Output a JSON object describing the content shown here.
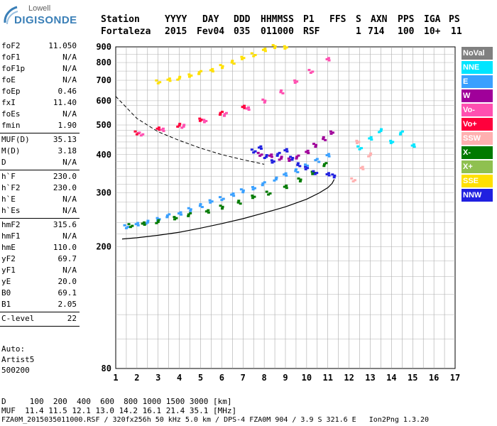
{
  "brand": {
    "line1": "Lowell",
    "line2": "DIGISONDE"
  },
  "header": {
    "labels": [
      "Station",
      "YYYY",
      "DAY",
      "DDD",
      "HHMMSS",
      "P1",
      "FFS",
      "S",
      "AXN",
      "PPS",
      "IGA",
      "PS"
    ],
    "values": [
      "Fortaleza",
      "2015",
      "Fev04",
      "035",
      "011000",
      "RSF",
      "",
      "1",
      "714",
      "100",
      "10+",
      "11"
    ]
  },
  "params_group1": [
    {
      "label": "foF2",
      "value": "11.050"
    },
    {
      "label": "foF1",
      "value": "N/A"
    },
    {
      "label": "foF1p",
      "value": "N/A"
    },
    {
      "label": "foE",
      "value": "N/A"
    },
    {
      "label": "foEp",
      "value": "0.46"
    },
    {
      "label": "fxI",
      "value": "11.40"
    },
    {
      "label": "foEs",
      "value": "N/A"
    },
    {
      "label": "fmin",
      "value": "1.90"
    }
  ],
  "params_group2": [
    {
      "label": "MUF(D)",
      "value": "35.13"
    },
    {
      "label": "M(D)",
      "value": "3.18"
    },
    {
      "label": "D",
      "value": "N/A"
    }
  ],
  "params_group3": [
    {
      "label": "h`F",
      "value": "230.0"
    },
    {
      "label": "h`F2",
      "value": "230.0"
    },
    {
      "label": "h`E",
      "value": "N/A"
    },
    {
      "label": "h`Es",
      "value": "N/A"
    }
  ],
  "params_group4": [
    {
      "label": "hmF2",
      "value": "315.6"
    },
    {
      "label": "hmF1",
      "value": "N/A"
    },
    {
      "label": "hmE",
      "value": "110.0"
    },
    {
      "label": "yF2",
      "value": "69.7"
    },
    {
      "label": "yF1",
      "value": "N/A"
    },
    {
      "label": "yE",
      "value": "20.0"
    },
    {
      "label": "B0",
      "value": "69.1"
    },
    {
      "label": "B1",
      "value": "2.05"
    }
  ],
  "params_group5": [
    {
      "label": "C-level",
      "value": "22"
    }
  ],
  "autoscaling": {
    "line1": "Auto:",
    "line2": "Artist5",
    "line3": "500200"
  },
  "legend": [
    {
      "label": "NoVal",
      "color": "#808080"
    },
    {
      "label": "NNE",
      "color": "#00e5ff"
    },
    {
      "label": "E",
      "color": "#3aa0ff"
    },
    {
      "label": "W",
      "color": "#a0009a"
    },
    {
      "label": "Vo-",
      "color": "#ff4fb0"
    },
    {
      "label": "Vo+",
      "color": "#ff003c"
    },
    {
      "label": "SSW",
      "color": "#ffb0b0"
    },
    {
      "label": "X-",
      "color": "#007a00"
    },
    {
      "label": "X+",
      "color": "#8fc050"
    },
    {
      "label": "SSE",
      "color": "#ffe000"
    },
    {
      "label": "NNW",
      "color": "#2020e0"
    }
  ],
  "footer": {
    "line1": "D     100  200  400  600  800 1000 1500 3000 [km]",
    "line2": "MUF  11.4 11.5 12.1 13.0 14.2 16.1 21.4 35.1 [MHz]",
    "line3": "FZA0M_2015035011000.RSF / 320fx256h 50 kHz 5.0 km / DPS-4 FZA0M 904 / 3.9 S 321.6 E   Ion2Png 1.3.20"
  },
  "chart_data": {
    "type": "scatter",
    "x_ticks": [
      "1",
      "2",
      "3",
      "4",
      "5",
      "6",
      "7",
      "8",
      "9",
      "10",
      "11",
      "12",
      "13",
      "14",
      "15",
      "16",
      "17"
    ],
    "y_ticks": [
      "80",
      "200",
      "300",
      "400",
      "500",
      "600",
      "700",
      "800",
      "900"
    ],
    "xlim": [
      1,
      17
    ],
    "y_scale": "log",
    "ylim": [
      80,
      900
    ],
    "grid": true,
    "legend_placement": "right",
    "series": [
      {
        "key": "E",
        "color": "#3aa0ff",
        "x": [
          1.5,
          2,
          2.5,
          3,
          3.5,
          4,
          4.5,
          5,
          5.5,
          6,
          6.5,
          7,
          7.5,
          8,
          8.5,
          9,
          9.5,
          10,
          10.5,
          11
        ],
        "y": [
          232,
          236,
          241,
          246,
          252,
          258,
          265,
          272,
          280,
          288,
          296,
          304,
          312,
          322,
          332,
          343,
          355,
          368,
          382,
          400
        ]
      },
      {
        "key": "X-",
        "color": "#007a00",
        "x": [
          1.7,
          2.3,
          3,
          3.8,
          4.5,
          5.3,
          6,
          6.8,
          7.5,
          8.2,
          9,
          9.7,
          10.3,
          10.9
        ],
        "y": [
          234,
          237,
          242,
          248,
          254,
          262,
          270,
          279,
          290,
          300,
          314,
          330,
          350,
          372
        ]
      },
      {
        "key": "W",
        "color": "#a0009a",
        "x": [
          7.8,
          8.3,
          8.8,
          9.2,
          9.6,
          10,
          10.4,
          10.8,
          11.2
        ],
        "y": [
          400,
          395,
          390,
          385,
          392,
          410,
          430,
          450,
          470
        ]
      },
      {
        "key": "NNW",
        "color": "#2020e0",
        "x": [
          7.5,
          7.8,
          8.1,
          8.4,
          8.7,
          9,
          9.3,
          9.6,
          10,
          10.4,
          11,
          11.3
        ],
        "y": [
          410,
          420,
          395,
          380,
          400,
          415,
          390,
          370,
          360,
          350,
          345,
          340
        ]
      },
      {
        "key": "Vo+",
        "color": "#ff003c",
        "x": [
          2,
          3,
          4,
          5,
          6,
          7
        ],
        "y": [
          470,
          484,
          500,
          520,
          545,
          575
        ]
      },
      {
        "key": "Vo-",
        "color": "#ff4fb0",
        "x": [
          2.2,
          3.2,
          4.2,
          5.2,
          6.2,
          7.2,
          8,
          8.8,
          9.5,
          10.2,
          11
        ],
        "y": [
          466,
          480,
          496,
          515,
          540,
          568,
          600,
          640,
          690,
          750,
          820
        ]
      },
      {
        "key": "SSE",
        "color": "#ffe000",
        "x": [
          3,
          3.5,
          4,
          4.5,
          5,
          5.5,
          6,
          6.5,
          7,
          7.5,
          8,
          8.5,
          9
        ],
        "y": [
          690,
          700,
          712,
          725,
          740,
          758,
          778,
          800,
          824,
          850,
          880,
          900,
          900
        ]
      },
      {
        "key": "NNE",
        "color": "#00e5ff",
        "x": [
          12.5,
          13,
          13.5,
          14,
          14.5,
          15
        ],
        "y": [
          420,
          450,
          480,
          440,
          470,
          430
        ]
      },
      {
        "key": "SSW",
        "color": "#ffb0b0",
        "x": [
          12.2,
          12.6,
          13,
          12.4
        ],
        "y": [
          330,
          360,
          400,
          440
        ]
      }
    ],
    "trace_curve": {
      "x": [
        1.3,
        2,
        3,
        4,
        5,
        6,
        7,
        8,
        9,
        10,
        10.6,
        11,
        11.2,
        11.3
      ],
      "y": [
        212,
        214,
        218,
        223,
        230,
        238,
        247,
        258,
        270,
        286,
        300,
        312,
        322,
        332
      ]
    },
    "dashed_curve": {
      "x": [
        1,
        2,
        3,
        4,
        5,
        6,
        7,
        8
      ],
      "y": [
        620,
        525,
        475,
        445,
        420,
        400,
        385,
        372
      ]
    }
  }
}
